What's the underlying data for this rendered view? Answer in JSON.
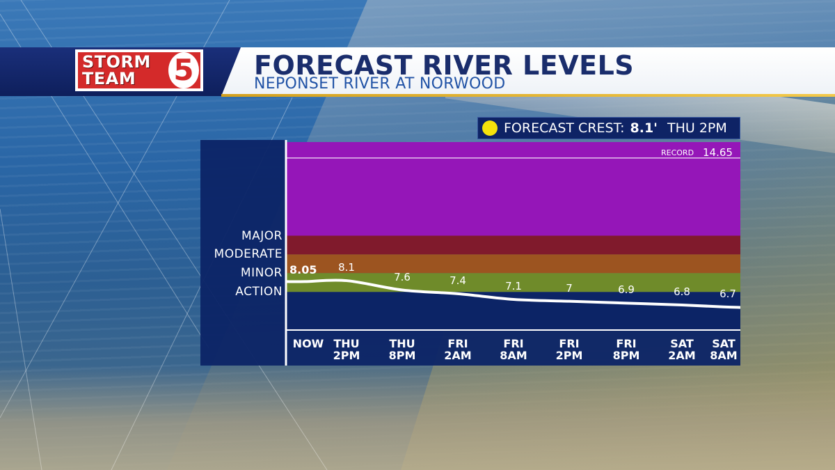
{
  "header": {
    "logo_line1": "STORM",
    "logo_line2": "TEAM",
    "logo_number": "5",
    "title": "FORECAST RIVER LEVELS",
    "subtitle": "NEPONSET RIVER AT NORWOOD"
  },
  "crest": {
    "label": "FORECAST CREST:",
    "value": "8.1'",
    "time": "THU 2PM"
  },
  "colors": {
    "major": "#9516b8",
    "moderate": "#801a2c",
    "minor": "#9c5420",
    "action": "#6f8b2a",
    "below": "#0c2466",
    "line": "#ffffff",
    "crest_dot": "#f5e20c"
  },
  "chart_data": {
    "type": "line",
    "title": "FORECAST RIVER LEVELS",
    "subtitle": "NEPONSET RIVER AT NORWOOD",
    "categories": [
      "NOW",
      "THU 2PM",
      "THU 8PM",
      "FRI 2AM",
      "FRI 8AM",
      "FRI 2PM",
      "FRI 8PM",
      "SAT 2AM",
      "SAT 8AM"
    ],
    "category_lines": [
      [
        "NOW"
      ],
      [
        "THU",
        "2PM"
      ],
      [
        "THU",
        "8PM"
      ],
      [
        "FRI",
        "2AM"
      ],
      [
        "FRI",
        "8AM"
      ],
      [
        "FRI",
        "2PM"
      ],
      [
        "FRI",
        "8PM"
      ],
      [
        "SAT",
        "2AM"
      ],
      [
        "SAT",
        "8AM"
      ]
    ],
    "values": [
      8.05,
      8.1,
      7.6,
      7.4,
      7.1,
      7,
      6.9,
      6.8,
      6.7
    ],
    "value_labels": [
      "8.05",
      "8.1",
      "7.6",
      "7.4",
      "7.1",
      "7",
      "6.9",
      "6.8",
      "6.7"
    ],
    "stages": [
      {
        "name": "MAJOR",
        "min": 10.5,
        "max": 15.5
      },
      {
        "name": "MODERATE",
        "min": 9.5,
        "max": 10.5
      },
      {
        "name": "MINOR",
        "min": 8.5,
        "max": 9.5
      },
      {
        "name": "ACTION",
        "min": 7.5,
        "max": 8.5
      }
    ],
    "record": {
      "label": "RECORD",
      "value": 14.65
    },
    "ylim": [
      5.5,
      15.5
    ]
  }
}
